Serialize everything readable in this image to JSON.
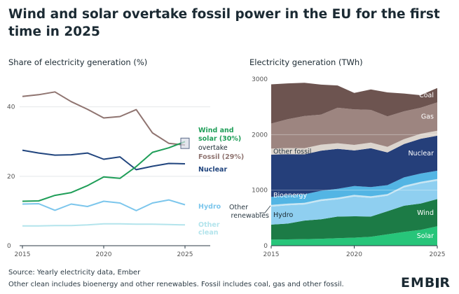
{
  "title": "Wind and solar overtake fossil power in the EU for the first time in 2025",
  "left_subtitle": "Share of electricity generation (%)",
  "right_subtitle": "Electricity generation (TWh)",
  "source_line1": "Source: Yearly electricity data, Ember",
  "source_line2": "Other clean includes bioenergy and other renewables. Fossil includes coal, gas and other fossil.",
  "logo_pre": "EMB",
  "logo_post": "R",
  "colors": {
    "wind_solar": "#1f9e58",
    "fossil": "#8f7470",
    "nuclear": "#21457e",
    "hydro": "#7cc6ec",
    "other_clean": "#b3e4ec",
    "solar": "#27c57a",
    "wind": "#1c7b46",
    "hydro_area": "#8fcff0",
    "other_renewables": "#c8e6f3",
    "bioenergy": "#53b5e4",
    "nuclear_area": "#253f7a",
    "other_fossil": "#dcd5ce",
    "gas": "#9d8580",
    "coal": "#6d5450"
  },
  "chart_data": [
    {
      "type": "line",
      "x": [
        2015,
        2016,
        2017,
        2018,
        2019,
        2020,
        2021,
        2022,
        2023,
        2024,
        2025
      ],
      "xticks": [
        2015,
        2020,
        2025
      ],
      "yticks": [
        0,
        20,
        40
      ],
      "xlim": [
        2015,
        2025
      ],
      "ylim": [
        0,
        48
      ],
      "series": [
        {
          "name": "Fossil",
          "label_line1": "Fossil (29%)",
          "values": [
            43,
            43.5,
            44.3,
            41.5,
            39.3,
            36.8,
            37.2,
            39.2,
            32.5,
            29.5,
            29
          ]
        },
        {
          "name": "Wind and solar",
          "label_line1": "Wind and",
          "label_line2": "solar (30%)",
          "values": [
            12.8,
            12.9,
            14.5,
            15.3,
            17.3,
            19.8,
            19.4,
            22.8,
            26.9,
            28.2,
            30
          ]
        },
        {
          "name": "Nuclear",
          "label_line1": "Nuclear",
          "values": [
            27.5,
            26.7,
            26.1,
            26.2,
            26.7,
            24.9,
            25.6,
            21.9,
            22.9,
            23.7,
            23.6
          ]
        },
        {
          "name": "Hydro",
          "label_line1": "Hydro",
          "values": [
            12,
            12.1,
            10.2,
            12,
            11.3,
            12.8,
            12.3,
            10.1,
            12.3,
            13.2,
            11.8
          ]
        },
        {
          "name": "Other clean",
          "label_line1": "Other",
          "label_line2": "clean",
          "values": [
            5.7,
            5.7,
            5.8,
            5.8,
            6.0,
            6.3,
            6.3,
            6.2,
            6.2,
            6.1,
            6.0
          ]
        }
      ],
      "annotation": "overtake"
    },
    {
      "type": "area",
      "stacked": true,
      "x": [
        2015,
        2016,
        2017,
        2018,
        2019,
        2020,
        2021,
        2022,
        2023,
        2024,
        2025
      ],
      "xticks": [
        2015,
        2020,
        2025
      ],
      "yticks": [
        0,
        1000,
        2000,
        3000
      ],
      "xlim": [
        2015,
        2025
      ],
      "ylim": [
        0,
        3000
      ],
      "series": [
        {
          "name": "Solar",
          "values": [
            110,
            113,
            118,
            125,
            135,
            145,
            160,
            205,
            250,
            285,
            350
          ]
        },
        {
          "name": "Wind",
          "values": [
            270,
            285,
            335,
            350,
            390,
            385,
            365,
            415,
            470,
            475,
            490
          ]
        },
        {
          "name": "Hydro",
          "values": [
            325,
            330,
            290,
            330,
            310,
            355,
            335,
            280,
            330,
            360,
            330
          ]
        },
        {
          "name": "Other renewables",
          "values": [
            30,
            30,
            30,
            30,
            30,
            30,
            30,
            30,
            30,
            30,
            30
          ]
        },
        {
          "name": "Bioenergy",
          "values": [
            145,
            150,
            152,
            155,
            160,
            160,
            165,
            160,
            150,
            150,
            150
          ]
        },
        {
          "name": "Nuclear",
          "values": [
            760,
            740,
            720,
            720,
            720,
            640,
            700,
            590,
            600,
            625,
            630
          ]
        },
        {
          "name": "Other fossil",
          "values": [
            110,
            110,
            110,
            110,
            100,
            100,
            100,
            100,
            90,
            90,
            90
          ]
        },
        {
          "name": "Gas",
          "values": [
            450,
            520,
            580,
            540,
            640,
            640,
            590,
            550,
            500,
            470,
            510
          ]
        },
        {
          "name": "Coal",
          "values": [
            705,
            645,
            600,
            540,
            400,
            295,
            370,
            430,
            320,
            225,
            260
          ]
        }
      ]
    }
  ]
}
